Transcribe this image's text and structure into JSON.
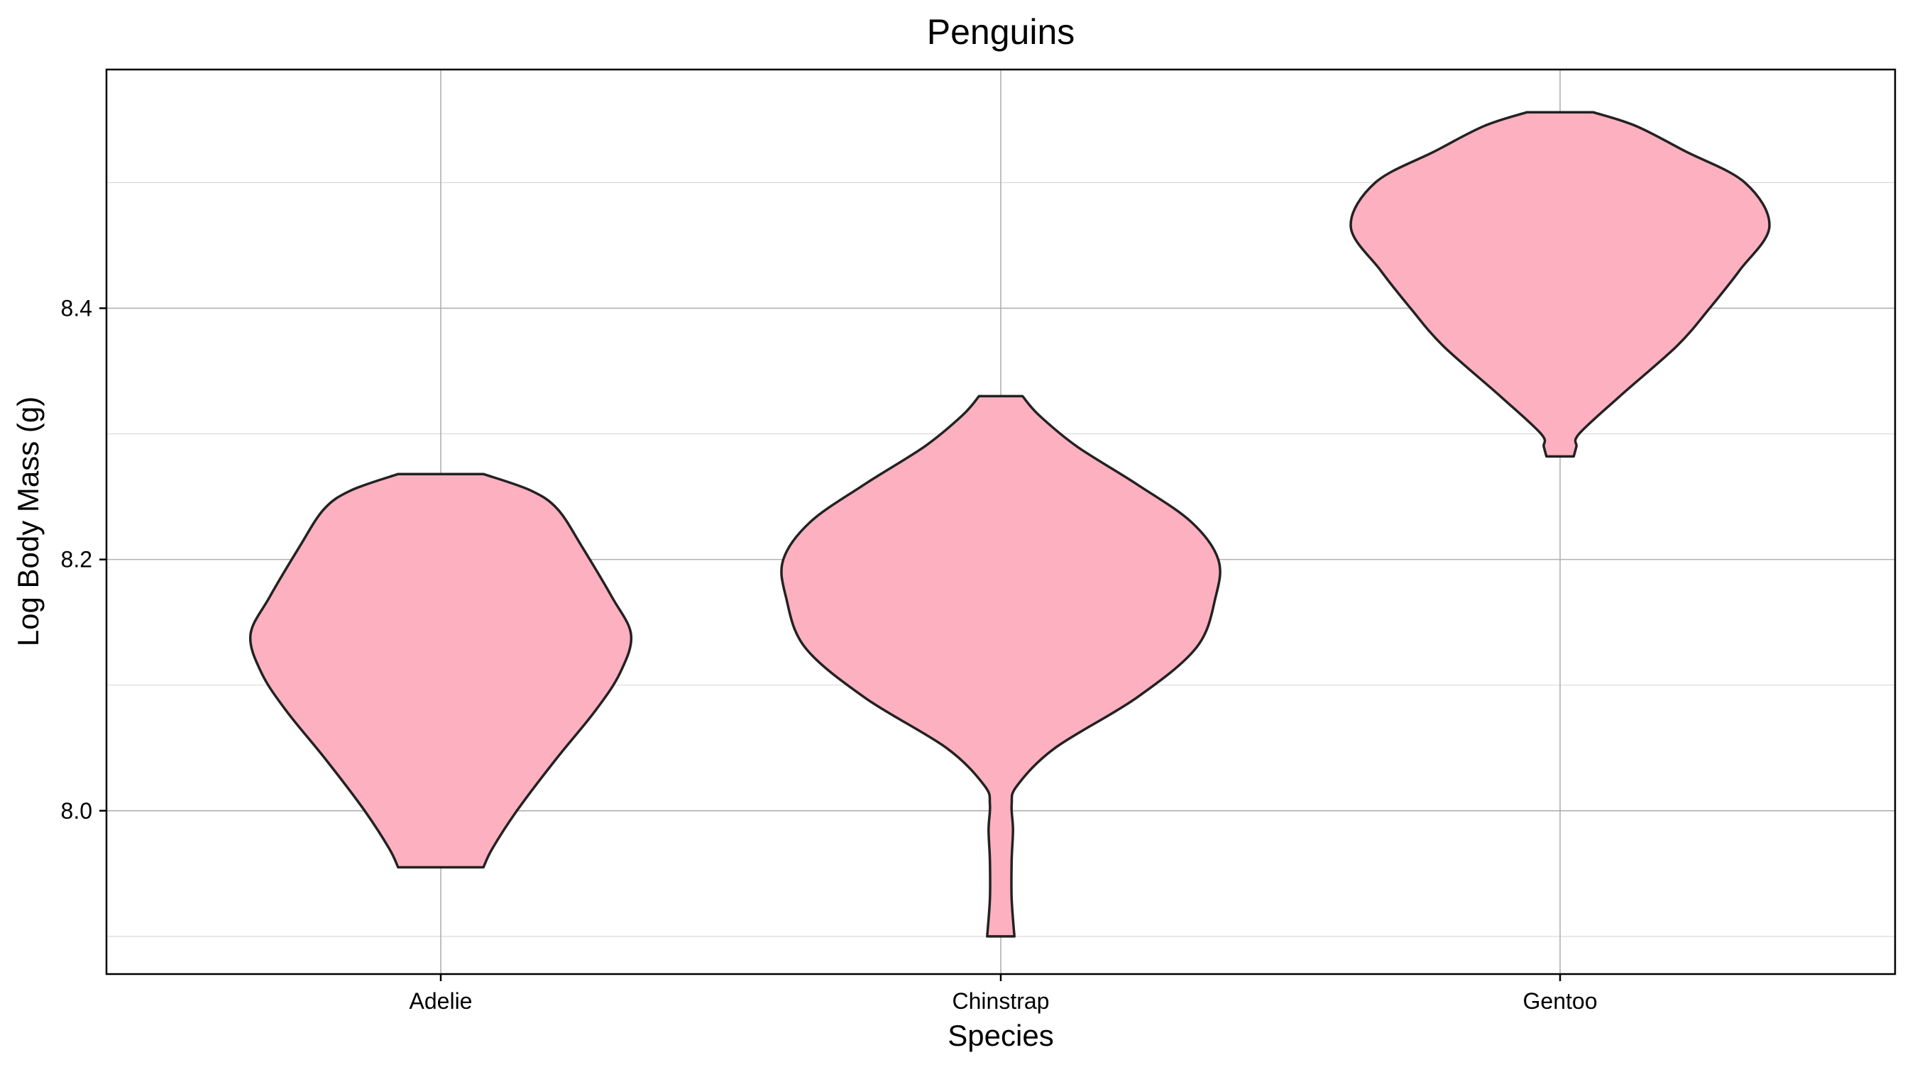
{
  "chart_data": {
    "type": "violin",
    "title": "Penguins",
    "xlabel": "Species",
    "ylabel": "Log Body Mass (g)",
    "categories": [
      "Adelie",
      "Chinstrap",
      "Gentoo"
    ],
    "ylim": [
      7.87,
      8.59
    ],
    "yticks": [
      8.0,
      8.2,
      8.4
    ],
    "yticks_minor": [
      7.9,
      8.1,
      8.3,
      8.5
    ],
    "y_tick_labels": [
      "8.0",
      "8.2",
      "8.4"
    ],
    "grid": true,
    "fill_color": "#fdb0c0",
    "edge_color": "#222222",
    "violins": [
      {
        "category": "Adelie",
        "min": 7.955,
        "max": 8.268,
        "profile": [
          [
            7.955,
            0.157
          ],
          [
            7.97,
            0.19
          ],
          [
            8.0,
            0.28
          ],
          [
            8.04,
            0.42
          ],
          [
            8.08,
            0.57
          ],
          [
            8.11,
            0.66
          ],
          [
            8.14,
            0.7
          ],
          [
            8.17,
            0.63
          ],
          [
            8.21,
            0.52
          ],
          [
            8.24,
            0.43
          ],
          [
            8.255,
            0.33
          ],
          [
            8.268,
            0.157
          ]
        ]
      },
      {
        "category": "Chinstrap",
        "min": 7.9,
        "max": 8.33,
        "profile": [
          [
            7.9,
            0.05
          ],
          [
            7.93,
            0.04
          ],
          [
            7.96,
            0.04
          ],
          [
            7.985,
            0.045
          ],
          [
            8.005,
            0.04
          ],
          [
            8.02,
            0.06
          ],
          [
            8.05,
            0.2
          ],
          [
            8.09,
            0.5
          ],
          [
            8.13,
            0.72
          ],
          [
            8.17,
            0.79
          ],
          [
            8.2,
            0.8
          ],
          [
            8.23,
            0.7
          ],
          [
            8.26,
            0.5
          ],
          [
            8.29,
            0.28
          ],
          [
            8.315,
            0.14
          ],
          [
            8.33,
            0.08
          ]
        ]
      },
      {
        "category": "Gentoo",
        "min": 8.282,
        "max": 8.556,
        "profile": [
          [
            8.282,
            0.05
          ],
          [
            8.29,
            0.06
          ],
          [
            8.3,
            0.07
          ],
          [
            8.33,
            0.22
          ],
          [
            8.37,
            0.43
          ],
          [
            8.4,
            0.55
          ],
          [
            8.43,
            0.66
          ],
          [
            8.465,
            0.77
          ],
          [
            8.5,
            0.68
          ],
          [
            8.525,
            0.46
          ],
          [
            8.545,
            0.28
          ],
          [
            8.556,
            0.122
          ]
        ]
      }
    ]
  }
}
